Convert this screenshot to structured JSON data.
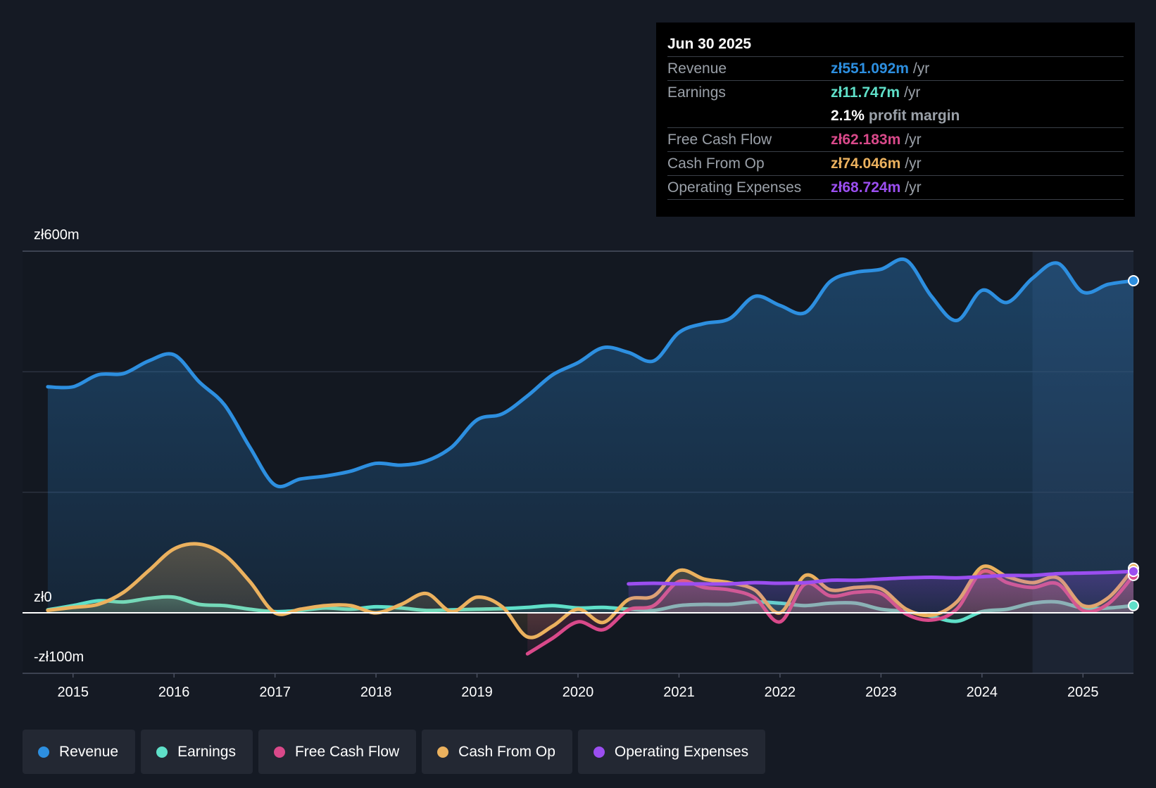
{
  "chart_data": {
    "type": "area",
    "y_axis": {
      "top_label": "zł600m",
      "zero_label": "zł0",
      "bottom_label": "-zł100m",
      "ylim": [
        -100,
        600
      ]
    },
    "x_ticks": [
      "2015",
      "2016",
      "2017",
      "2018",
      "2019",
      "2020",
      "2021",
      "2022",
      "2023",
      "2024",
      "2025"
    ],
    "xlim": [
      2014.5,
      2025.5
    ],
    "forecast_shade_start": 2024.5,
    "series": [
      {
        "name": "Revenue",
        "color": "#2d8fe0",
        "points": [
          [
            2014.75,
            375
          ],
          [
            2015.0,
            375
          ],
          [
            2015.25,
            395
          ],
          [
            2015.5,
            397
          ],
          [
            2015.75,
            418
          ],
          [
            2016.0,
            428
          ],
          [
            2016.25,
            383
          ],
          [
            2016.5,
            345
          ],
          [
            2016.75,
            275
          ],
          [
            2017.0,
            212
          ],
          [
            2017.25,
            222
          ],
          [
            2017.5,
            227
          ],
          [
            2017.75,
            235
          ],
          [
            2018.0,
            248
          ],
          [
            2018.25,
            245
          ],
          [
            2018.5,
            252
          ],
          [
            2018.75,
            275
          ],
          [
            2019.0,
            320
          ],
          [
            2019.25,
            330
          ],
          [
            2019.5,
            360
          ],
          [
            2019.75,
            395
          ],
          [
            2020.0,
            415
          ],
          [
            2020.25,
            440
          ],
          [
            2020.5,
            432
          ],
          [
            2020.75,
            418
          ],
          [
            2021.0,
            465
          ],
          [
            2021.25,
            480
          ],
          [
            2021.5,
            488
          ],
          [
            2021.75,
            525
          ],
          [
            2022.0,
            510
          ],
          [
            2022.25,
            498
          ],
          [
            2022.5,
            550
          ],
          [
            2022.75,
            565
          ],
          [
            2023.0,
            570
          ],
          [
            2023.25,
            585
          ],
          [
            2023.5,
            525
          ],
          [
            2023.75,
            485
          ],
          [
            2024.0,
            535
          ],
          [
            2024.25,
            515
          ],
          [
            2024.5,
            555
          ],
          [
            2024.75,
            580
          ],
          [
            2025.0,
            532
          ],
          [
            2025.25,
            545
          ],
          [
            2025.5,
            551
          ]
        ]
      },
      {
        "name": "Earnings",
        "color": "#5fe0c9",
        "points": [
          [
            2014.75,
            5
          ],
          [
            2015.0,
            12
          ],
          [
            2015.25,
            20
          ],
          [
            2015.5,
            18
          ],
          [
            2015.75,
            24
          ],
          [
            2016.0,
            26
          ],
          [
            2016.25,
            14
          ],
          [
            2016.5,
            12
          ],
          [
            2016.75,
            6
          ],
          [
            2017.0,
            2
          ],
          [
            2017.25,
            4
          ],
          [
            2017.5,
            8
          ],
          [
            2017.75,
            6
          ],
          [
            2018.0,
            10
          ],
          [
            2018.25,
            8
          ],
          [
            2018.5,
            4
          ],
          [
            2018.75,
            5
          ],
          [
            2019.0,
            6
          ],
          [
            2019.25,
            7
          ],
          [
            2019.5,
            9
          ],
          [
            2019.75,
            12
          ],
          [
            2020.0,
            8
          ],
          [
            2020.25,
            9
          ],
          [
            2020.5,
            6
          ],
          [
            2020.75,
            4
          ],
          [
            2021.0,
            12
          ],
          [
            2021.25,
            14
          ],
          [
            2021.5,
            14
          ],
          [
            2021.75,
            18
          ],
          [
            2022.0,
            16
          ],
          [
            2022.25,
            12
          ],
          [
            2022.5,
            16
          ],
          [
            2022.75,
            16
          ],
          [
            2023.0,
            6
          ],
          [
            2023.25,
            2
          ],
          [
            2023.5,
            -6
          ],
          [
            2023.75,
            -14
          ],
          [
            2024.0,
            2
          ],
          [
            2024.25,
            6
          ],
          [
            2024.5,
            16
          ],
          [
            2024.75,
            18
          ],
          [
            2025.0,
            8
          ],
          [
            2025.25,
            8
          ],
          [
            2025.5,
            12
          ]
        ]
      },
      {
        "name": "Free Cash Flow",
        "color": "#d9498a",
        "points": [
          [
            2019.5,
            -68
          ],
          [
            2019.75,
            -42
          ],
          [
            2020.0,
            -15
          ],
          [
            2020.25,
            -28
          ],
          [
            2020.5,
            5
          ],
          [
            2020.75,
            12
          ],
          [
            2021.0,
            52
          ],
          [
            2021.25,
            42
          ],
          [
            2021.5,
            38
          ],
          [
            2021.75,
            25
          ],
          [
            2022.0,
            -15
          ],
          [
            2022.25,
            48
          ],
          [
            2022.5,
            28
          ],
          [
            2022.75,
            34
          ],
          [
            2023.0,
            32
          ],
          [
            2023.25,
            -2
          ],
          [
            2023.5,
            -12
          ],
          [
            2023.75,
            6
          ],
          [
            2024.0,
            68
          ],
          [
            2024.25,
            50
          ],
          [
            2024.5,
            42
          ],
          [
            2024.75,
            48
          ],
          [
            2025.0,
            4
          ],
          [
            2025.25,
            15
          ],
          [
            2025.5,
            62
          ]
        ]
      },
      {
        "name": "Cash From Op",
        "color": "#ebb15e",
        "points": [
          [
            2014.75,
            4
          ],
          [
            2015.0,
            9
          ],
          [
            2015.25,
            14
          ],
          [
            2015.5,
            34
          ],
          [
            2015.75,
            70
          ],
          [
            2016.0,
            106
          ],
          [
            2016.25,
            114
          ],
          [
            2016.5,
            96
          ],
          [
            2016.75,
            52
          ],
          [
            2017.0,
            0
          ],
          [
            2017.25,
            6
          ],
          [
            2017.5,
            12
          ],
          [
            2017.75,
            12
          ],
          [
            2018.0,
            0
          ],
          [
            2018.25,
            14
          ],
          [
            2018.5,
            32
          ],
          [
            2018.75,
            2
          ],
          [
            2019.0,
            26
          ],
          [
            2019.25,
            10
          ],
          [
            2019.5,
            -40
          ],
          [
            2019.75,
            -22
          ],
          [
            2020.0,
            6
          ],
          [
            2020.25,
            -16
          ],
          [
            2020.5,
            22
          ],
          [
            2020.75,
            28
          ],
          [
            2021.0,
            70
          ],
          [
            2021.25,
            56
          ],
          [
            2021.5,
            50
          ],
          [
            2021.75,
            38
          ],
          [
            2022.0,
            0
          ],
          [
            2022.25,
            62
          ],
          [
            2022.5,
            38
          ],
          [
            2022.75,
            42
          ],
          [
            2023.0,
            40
          ],
          [
            2023.25,
            6
          ],
          [
            2023.5,
            -4
          ],
          [
            2023.75,
            18
          ],
          [
            2024.0,
            76
          ],
          [
            2024.25,
            60
          ],
          [
            2024.5,
            50
          ],
          [
            2024.75,
            58
          ],
          [
            2025.0,
            12
          ],
          [
            2025.25,
            25
          ],
          [
            2025.5,
            74
          ]
        ]
      },
      {
        "name": "Operating Expenses",
        "color": "#9b4ef0",
        "points": [
          [
            2020.5,
            48
          ],
          [
            2020.75,
            49
          ],
          [
            2021.0,
            48
          ],
          [
            2021.25,
            48
          ],
          [
            2021.5,
            48
          ],
          [
            2021.75,
            50
          ],
          [
            2022.0,
            49
          ],
          [
            2022.25,
            50
          ],
          [
            2022.5,
            54
          ],
          [
            2022.75,
            54
          ],
          [
            2023.0,
            56
          ],
          [
            2023.25,
            58
          ],
          [
            2023.5,
            59
          ],
          [
            2023.75,
            58
          ],
          [
            2024.0,
            60
          ],
          [
            2024.25,
            62
          ],
          [
            2024.5,
            62
          ],
          [
            2024.75,
            65
          ],
          [
            2025.0,
            66
          ],
          [
            2025.25,
            67
          ],
          [
            2025.5,
            68.7
          ]
        ]
      }
    ]
  },
  "tooltip": {
    "date": "Jun 30 2025",
    "revenue_label": "Revenue",
    "revenue_value": "zł551.092m",
    "revenue_unit": "/yr",
    "earnings_label": "Earnings",
    "earnings_value": "zł11.747m",
    "earnings_unit": "/yr",
    "margin_value": "2.1%",
    "margin_label": "profit margin",
    "fcf_label": "Free Cash Flow",
    "fcf_value": "zł62.183m",
    "fcf_unit": "/yr",
    "cfo_label": "Cash From Op",
    "cfo_value": "zł74.046m",
    "cfo_unit": "/yr",
    "opex_label": "Operating Expenses",
    "opex_value": "zł68.724m",
    "opex_unit": "/yr"
  },
  "legend": [
    {
      "label": "Revenue",
      "color": "#2d8fe0"
    },
    {
      "label": "Earnings",
      "color": "#5fe0c9"
    },
    {
      "label": "Free Cash Flow",
      "color": "#d9498a"
    },
    {
      "label": "Cash From Op",
      "color": "#ebb15e"
    },
    {
      "label": "Operating Expenses",
      "color": "#9b4ef0"
    }
  ]
}
